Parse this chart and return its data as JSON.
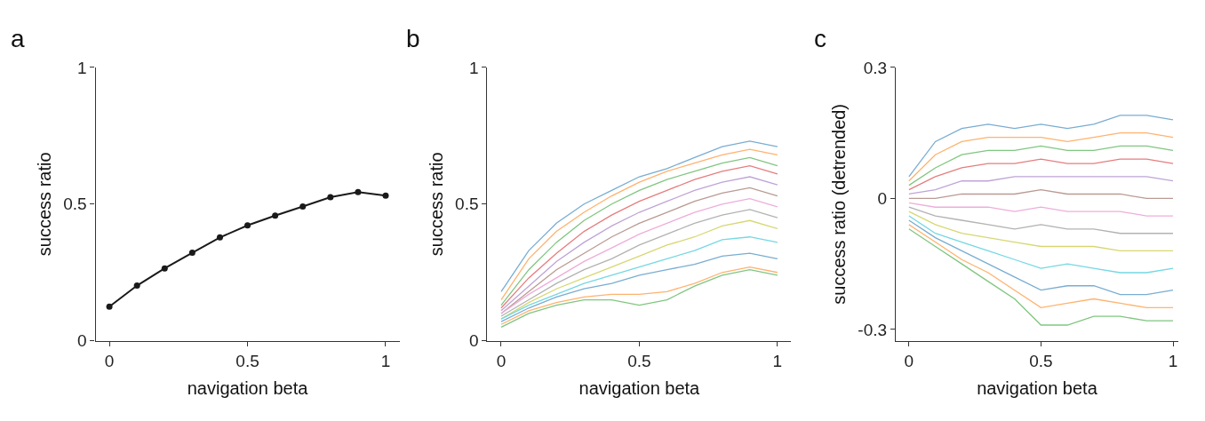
{
  "chart_data": [
    {
      "type": "line",
      "title": "a",
      "xlabel": "navigation beta",
      "ylabel": "success ratio",
      "x": [
        0,
        0.1,
        0.2,
        0.3,
        0.4,
        0.5,
        0.6,
        0.7,
        0.8,
        0.9,
        1
      ],
      "marker": "circle",
      "series": [
        {
          "color": "#1a1a1a",
          "values": [
            0.125,
            0.202,
            0.265,
            0.322,
            0.378,
            0.422,
            0.458,
            0.491,
            0.525,
            0.544,
            0.531
          ]
        }
      ],
      "xlim": [
        -0.05,
        1.05
      ],
      "ylim": [
        0,
        1
      ],
      "xticks": [
        0,
        0.5,
        1
      ],
      "yticks": [
        0,
        0.5,
        1
      ]
    },
    {
      "type": "line",
      "title": "b",
      "xlabel": "navigation beta",
      "ylabel": "success ratio",
      "x": [
        0,
        0.1,
        0.2,
        0.3,
        0.4,
        0.5,
        0.6,
        0.7,
        0.8,
        0.9,
        1
      ],
      "series": [
        {
          "color": "#79add2",
          "values": [
            0.18,
            0.33,
            0.43,
            0.5,
            0.55,
            0.6,
            0.63,
            0.67,
            0.71,
            0.73,
            0.71
          ]
        },
        {
          "color": "#ffb26e",
          "values": [
            0.15,
            0.3,
            0.4,
            0.47,
            0.53,
            0.58,
            0.62,
            0.65,
            0.68,
            0.7,
            0.68
          ]
        },
        {
          "color": "#80c680",
          "values": [
            0.13,
            0.26,
            0.36,
            0.44,
            0.5,
            0.55,
            0.59,
            0.62,
            0.65,
            0.67,
            0.64
          ]
        },
        {
          "color": "#e67d7e",
          "values": [
            0.12,
            0.23,
            0.32,
            0.4,
            0.46,
            0.51,
            0.55,
            0.59,
            0.62,
            0.64,
            0.61
          ]
        },
        {
          "color": "#bfa4d7",
          "values": [
            0.11,
            0.2,
            0.29,
            0.36,
            0.42,
            0.47,
            0.51,
            0.55,
            0.58,
            0.6,
            0.57
          ]
        },
        {
          "color": "#ba9a93",
          "values": [
            0.1,
            0.18,
            0.26,
            0.32,
            0.38,
            0.43,
            0.47,
            0.51,
            0.54,
            0.56,
            0.53
          ]
        },
        {
          "color": "#eeadda",
          "values": [
            0.1,
            0.17,
            0.23,
            0.29,
            0.34,
            0.39,
            0.43,
            0.47,
            0.5,
            0.52,
            0.49
          ]
        },
        {
          "color": "#b2b2b2",
          "values": [
            0.09,
            0.15,
            0.21,
            0.26,
            0.3,
            0.35,
            0.39,
            0.43,
            0.46,
            0.48,
            0.45
          ]
        },
        {
          "color": "#d7d773",
          "values": [
            0.08,
            0.14,
            0.19,
            0.23,
            0.27,
            0.31,
            0.35,
            0.38,
            0.42,
            0.44,
            0.41
          ]
        },
        {
          "color": "#74d8e2",
          "values": [
            0.08,
            0.13,
            0.17,
            0.21,
            0.24,
            0.27,
            0.3,
            0.33,
            0.37,
            0.38,
            0.36
          ]
        },
        {
          "color": "#79add2",
          "values": [
            0.07,
            0.12,
            0.16,
            0.19,
            0.21,
            0.24,
            0.26,
            0.28,
            0.31,
            0.32,
            0.3
          ]
        },
        {
          "color": "#ffb26e",
          "values": [
            0.06,
            0.11,
            0.14,
            0.16,
            0.17,
            0.17,
            0.18,
            0.21,
            0.25,
            0.27,
            0.25
          ]
        },
        {
          "color": "#80c680",
          "values": [
            0.05,
            0.1,
            0.13,
            0.15,
            0.15,
            0.13,
            0.15,
            0.2,
            0.24,
            0.26,
            0.24
          ]
        }
      ],
      "xlim": [
        -0.05,
        1.05
      ],
      "ylim": [
        0,
        1
      ],
      "xticks": [
        0,
        0.5,
        1
      ],
      "yticks": [
        0,
        0.5,
        1
      ]
    },
    {
      "type": "line",
      "title": "c",
      "xlabel": "navigation beta",
      "ylabel": "success ratio (detrended)",
      "x": [
        0,
        0.1,
        0.2,
        0.3,
        0.4,
        0.5,
        0.6,
        0.7,
        0.8,
        0.9,
        1
      ],
      "series": [
        {
          "color": "#79add2",
          "values": [
            0.05,
            0.13,
            0.16,
            0.17,
            0.16,
            0.17,
            0.16,
            0.17,
            0.19,
            0.19,
            0.18
          ]
        },
        {
          "color": "#ffb26e",
          "values": [
            0.04,
            0.1,
            0.13,
            0.14,
            0.14,
            0.14,
            0.13,
            0.14,
            0.15,
            0.15,
            0.14
          ]
        },
        {
          "color": "#80c680",
          "values": [
            0.03,
            0.07,
            0.1,
            0.11,
            0.11,
            0.12,
            0.11,
            0.11,
            0.12,
            0.12,
            0.11
          ]
        },
        {
          "color": "#e67d7e",
          "values": [
            0.02,
            0.05,
            0.07,
            0.08,
            0.08,
            0.09,
            0.08,
            0.08,
            0.09,
            0.09,
            0.08
          ]
        },
        {
          "color": "#bfa4d7",
          "values": [
            0.01,
            0.02,
            0.04,
            0.04,
            0.05,
            0.05,
            0.05,
            0.05,
            0.05,
            0.05,
            0.04
          ]
        },
        {
          "color": "#ba9a93",
          "values": [
            0.0,
            0.0,
            0.01,
            0.01,
            0.01,
            0.02,
            0.01,
            0.01,
            0.01,
            0.0,
            0.0
          ]
        },
        {
          "color": "#eeadda",
          "values": [
            -0.01,
            -0.02,
            -0.02,
            -0.02,
            -0.03,
            -0.02,
            -0.03,
            -0.03,
            -0.03,
            -0.04,
            -0.04
          ]
        },
        {
          "color": "#b2b2b2",
          "values": [
            -0.02,
            -0.04,
            -0.05,
            -0.06,
            -0.07,
            -0.06,
            -0.07,
            -0.07,
            -0.08,
            -0.08,
            -0.08
          ]
        },
        {
          "color": "#d7d773",
          "values": [
            -0.03,
            -0.06,
            -0.08,
            -0.09,
            -0.1,
            -0.11,
            -0.11,
            -0.11,
            -0.12,
            -0.12,
            -0.12
          ]
        },
        {
          "color": "#74d8e2",
          "values": [
            -0.04,
            -0.08,
            -0.1,
            -0.12,
            -0.14,
            -0.16,
            -0.15,
            -0.16,
            -0.17,
            -0.17,
            -0.16
          ]
        },
        {
          "color": "#79add2",
          "values": [
            -0.05,
            -0.09,
            -0.12,
            -0.15,
            -0.18,
            -0.21,
            -0.2,
            -0.2,
            -0.22,
            -0.22,
            -0.21
          ]
        },
        {
          "color": "#ffb26e",
          "values": [
            -0.06,
            -0.1,
            -0.14,
            -0.17,
            -0.21,
            -0.25,
            -0.24,
            -0.23,
            -0.24,
            -0.25,
            -0.25
          ]
        },
        {
          "color": "#80c680",
          "values": [
            -0.07,
            -0.11,
            -0.15,
            -0.19,
            -0.23,
            -0.29,
            -0.29,
            -0.27,
            -0.27,
            -0.28,
            -0.28
          ]
        }
      ],
      "xlim": [
        -0.05,
        1.02
      ],
      "ylim": [
        -0.326,
        0.3
      ],
      "xticks": [
        0,
        0.5,
        1
      ],
      "yticks": [
        -0.3,
        0,
        0.3
      ]
    }
  ]
}
